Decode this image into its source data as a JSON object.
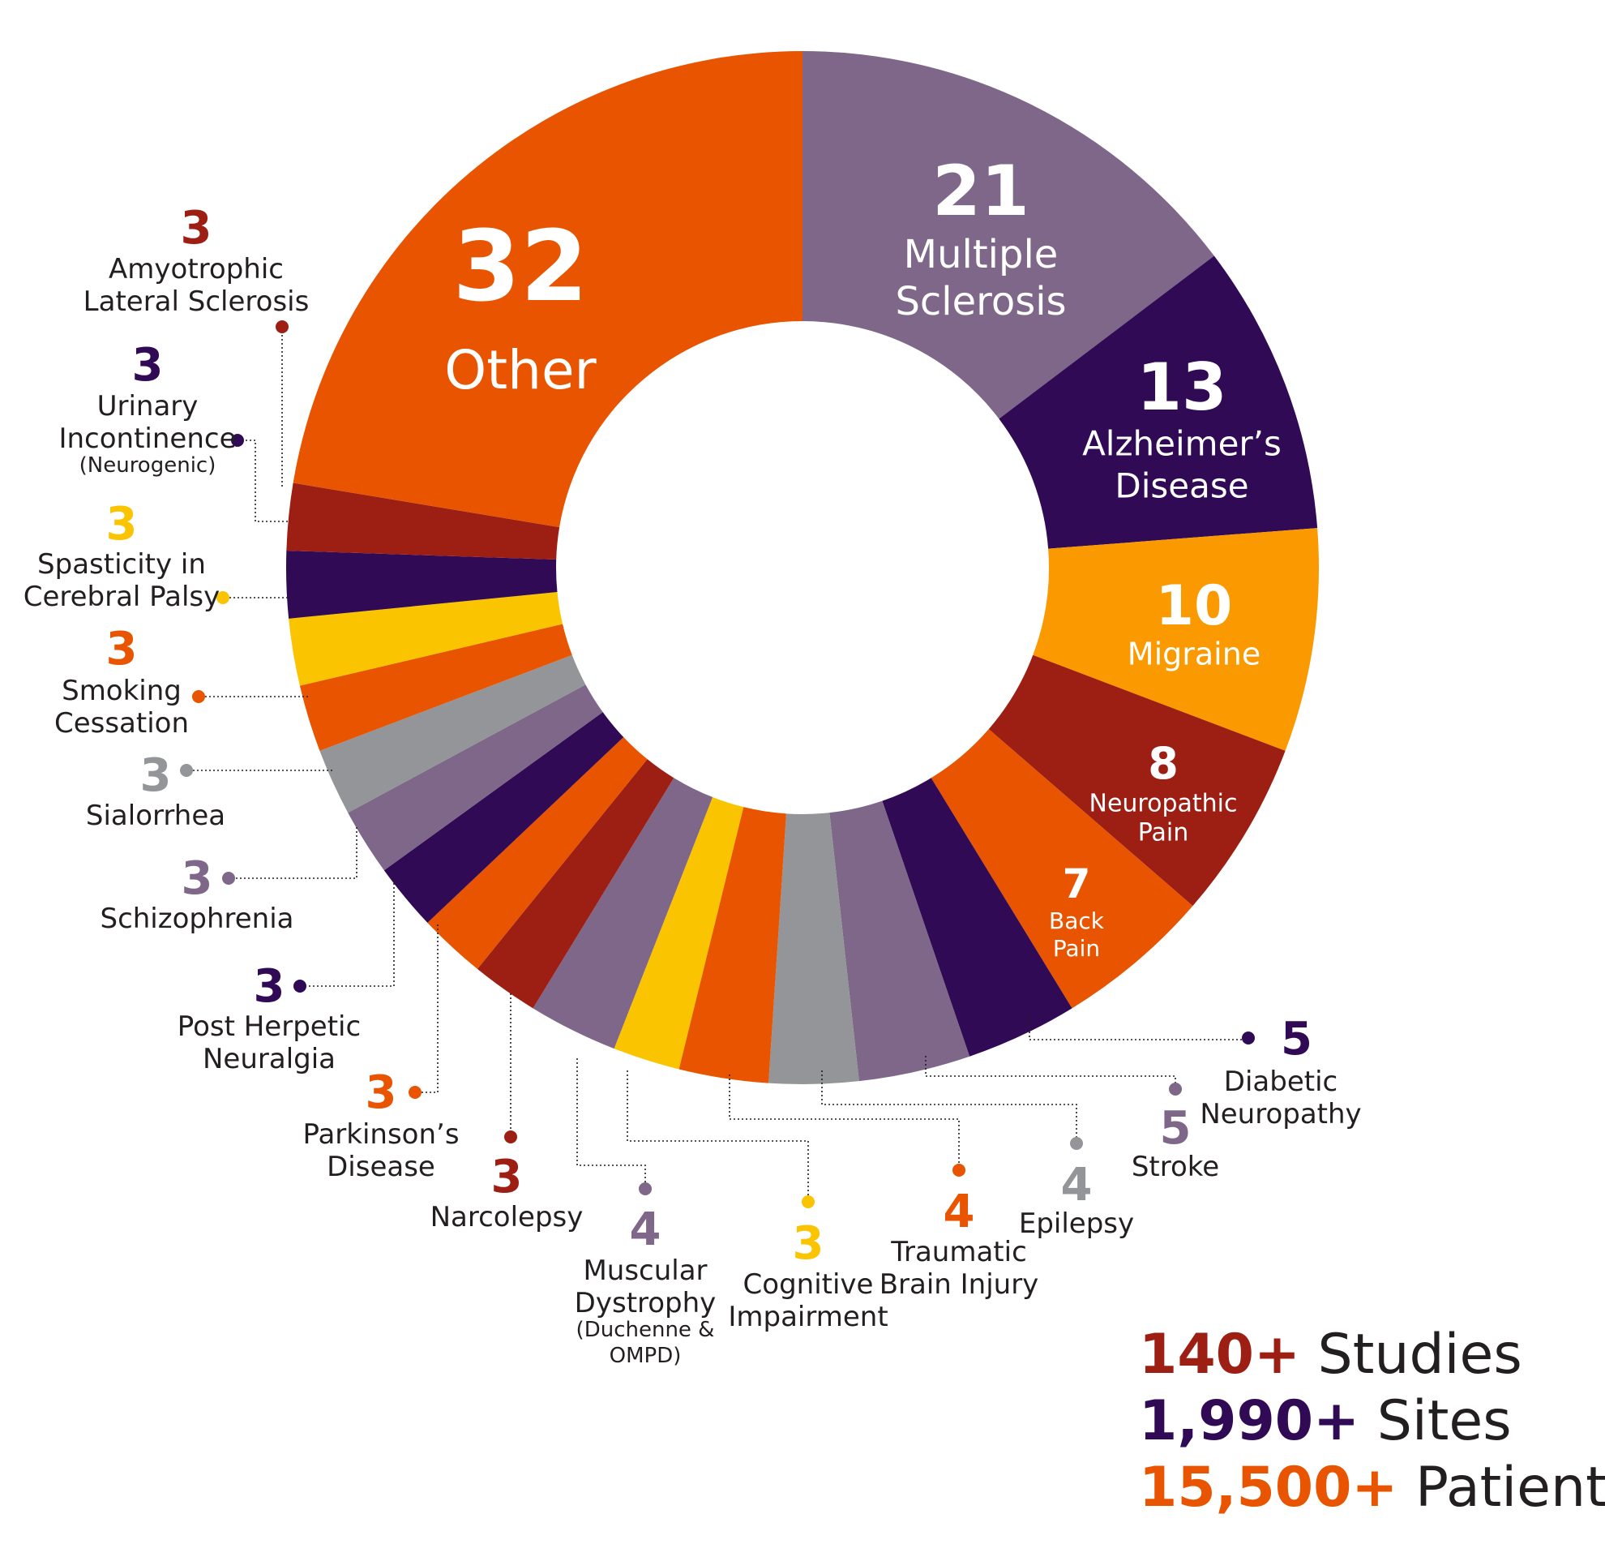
{
  "chart_data": {
    "type": "donut",
    "slices": [
      {
        "label": "Multiple Sclerosis",
        "lines": [
          "Multiple",
          "Sclerosis"
        ],
        "value": 21,
        "color": "#7e6788"
      },
      {
        "label": "Alzheimer’s Disease",
        "lines": [
          "Alzheimer’s",
          "Disease"
        ],
        "value": 13,
        "color": "#310a55"
      },
      {
        "label": "Migraine",
        "lines": [
          "Migraine"
        ],
        "value": 10,
        "color": "#fa9900"
      },
      {
        "label": "Neuropathic Pain",
        "lines": [
          "Neuropathic",
          "Pain"
        ],
        "value": 8,
        "color": "#9d1f14"
      },
      {
        "label": "Back Pain",
        "lines": [
          "Back",
          "Pain"
        ],
        "value": 7,
        "color": "#e85400"
      },
      {
        "label": "Diabetic Neuropathy",
        "lines": [
          "Diabetic",
          "Neuropathy"
        ],
        "value": 5,
        "color": "#310a55"
      },
      {
        "label": "Stroke",
        "lines": [
          "Stroke"
        ],
        "value": 5,
        "color": "#7e6788"
      },
      {
        "label": "Epilepsy",
        "lines": [
          "Epilepsy"
        ],
        "value": 4,
        "color": "#939598"
      },
      {
        "label": "Traumatic Brain Injury",
        "lines": [
          "Traumatic",
          "Brain Injury"
        ],
        "value": 4,
        "color": "#e85400"
      },
      {
        "label": "Cognitive Impairment",
        "lines": [
          "Cognitive",
          "Impairment"
        ],
        "value": 3,
        "color": "#fbc400"
      },
      {
        "label": "Muscular Dystrophy (Duchenne & OMPD)",
        "lines": [
          "Muscular",
          "Dystrophy"
        ],
        "sublines": [
          "(Duchenne &",
          "OMPD)"
        ],
        "value": 4,
        "color": "#7e6788"
      },
      {
        "label": "Narcolepsy",
        "lines": [
          "Narcolepsy"
        ],
        "value": 3,
        "color": "#9d1f14"
      },
      {
        "label": "Parkinson’s Disease",
        "lines": [
          "Parkinson’s",
          "Disease"
        ],
        "value": 3,
        "color": "#e85400"
      },
      {
        "label": "Post Herpetic Neuralgia",
        "lines": [
          "Post Herpetic",
          "Neuralgia"
        ],
        "value": 3,
        "color": "#310a55"
      },
      {
        "label": "Schizophrenia",
        "lines": [
          "Schizophrenia"
        ],
        "value": 3,
        "color": "#7e6788"
      },
      {
        "label": "Sialorrhea",
        "lines": [
          "Sialorrhea"
        ],
        "value": 3,
        "color": "#939598"
      },
      {
        "label": "Smoking Cessation",
        "lines": [
          "Smoking",
          "Cessation"
        ],
        "value": 3,
        "color": "#e85400"
      },
      {
        "label": "Spasticity in Cerebral Palsy",
        "lines": [
          "Spasticity in",
          "Cerebral Palsy"
        ],
        "value": 3,
        "color": "#fbc400"
      },
      {
        "label": "Urinary Incontinence (Neurogenic)",
        "lines": [
          "Urinary",
          "Incontinence"
        ],
        "sublines": [
          "(Neurogenic)"
        ],
        "value": 3,
        "color": "#310a55"
      },
      {
        "label": "Amyotrophic Lateral Sclerosis",
        "lines": [
          "Amyotrophic",
          "Lateral Sclerosis"
        ],
        "value": 3,
        "color": "#9d1f14"
      },
      {
        "label": "Other",
        "lines": [
          "Other"
        ],
        "value": 32,
        "color": "#e85400"
      }
    ]
  },
  "stats": [
    {
      "value": "140+",
      "label": " Studies",
      "color": "#9d1f14"
    },
    {
      "value": "1,990+",
      "label": " Sites",
      "color": "#310a55"
    },
    {
      "value": "15,500+",
      "label": " Patients",
      "color": "#e85400"
    }
  ]
}
